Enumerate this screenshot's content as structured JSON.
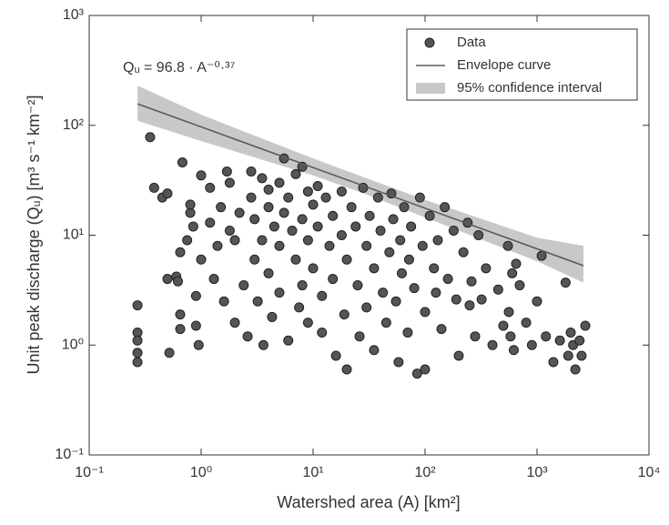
{
  "chart_data": {
    "type": "scatter",
    "xlabel": "Watershed area (A) [km²]",
    "ylabel": "Unit peak discharge (Qᵤ) [m³ s⁻¹ km⁻²]",
    "annotation": "Qᵤ = 96.8 · A⁻⁰·³⁷",
    "xscale": "log",
    "yscale": "log",
    "xlim": [
      0.1,
      10000
    ],
    "ylim": [
      0.1,
      1000
    ],
    "xticks": [
      {
        "value": 0.1,
        "label": "10⁻¹"
      },
      {
        "value": 1,
        "label": "10⁰"
      },
      {
        "value": 10,
        "label": "10¹"
      },
      {
        "value": 100,
        "label": "10²"
      },
      {
        "value": 1000,
        "label": "10³"
      },
      {
        "value": 10000,
        "label": "10⁴"
      }
    ],
    "yticks": [
      {
        "value": 0.1,
        "label": "10⁻¹"
      },
      {
        "value": 1,
        "label": "10⁰"
      },
      {
        "value": 10,
        "label": "10¹"
      },
      {
        "value": 100,
        "label": "10²"
      },
      {
        "value": 1000,
        "label": "10³"
      }
    ],
    "legend": "upper right",
    "series": [
      {
        "name": "Data",
        "color": "#555555",
        "mark": "marker",
        "x": [
          0.27,
          0.27,
          0.27,
          0.27,
          0.27,
          0.35,
          0.38,
          0.45,
          0.5,
          0.5,
          0.52,
          0.6,
          0.62,
          0.65,
          0.65,
          0.65,
          0.68,
          0.75,
          0.8,
          0.8,
          0.85,
          0.9,
          0.9,
          0.95,
          1,
          1,
          1.2,
          1.2,
          1.3,
          1.4,
          1.5,
          1.6,
          1.7,
          1.8,
          1.8,
          2,
          2,
          2.2,
          2.4,
          2.6,
          2.8,
          2.8,
          3,
          3,
          3.2,
          3.5,
          3.5,
          3.6,
          4,
          4,
          4,
          4.3,
          4.5,
          5,
          5,
          5,
          5.5,
          5.5,
          6,
          6,
          6.5,
          7,
          7,
          7.5,
          8,
          8,
          8,
          9,
          9,
          9,
          10,
          10,
          11,
          11,
          12,
          12,
          13,
          14,
          15,
          15,
          16,
          18,
          18,
          19,
          20,
          20,
          22,
          24,
          25,
          26,
          28,
          30,
          30,
          32,
          35,
          35,
          38,
          40,
          42,
          45,
          48,
          50,
          52,
          55,
          58,
          60,
          62,
          65,
          70,
          72,
          75,
          80,
          85,
          90,
          95,
          100,
          100,
          110,
          120,
          125,
          130,
          140,
          150,
          160,
          180,
          190,
          200,
          220,
          240,
          250,
          260,
          280,
          300,
          320,
          350,
          400,
          450,
          500,
          550,
          560,
          580,
          600,
          620,
          650,
          700,
          800,
          900,
          1000,
          1100,
          1200,
          1400,
          1600,
          1800,
          1900,
          2000,
          2100,
          2200,
          2400,
          2500,
          2700
        ],
        "values": [
          2.3,
          1.3,
          1.1,
          0.85,
          0.7,
          78,
          27,
          22,
          24,
          4,
          0.85,
          4.2,
          3.8,
          7,
          1.9,
          1.4,
          46,
          9,
          16,
          19,
          12,
          1.5,
          2.8,
          1,
          35,
          6,
          27,
          13,
          4,
          8,
          18,
          2.5,
          38,
          30,
          11,
          9,
          1.6,
          16,
          3.5,
          1.2,
          38,
          22,
          14,
          6,
          2.5,
          33,
          9,
          1,
          26,
          18,
          4.5,
          1.8,
          12,
          30,
          8,
          3,
          50,
          16,
          22,
          1.1,
          11,
          36,
          6,
          2.2,
          42,
          14,
          3.5,
          25,
          9,
          1.6,
          19,
          5,
          28,
          12,
          2.8,
          1.3,
          22,
          8,
          15,
          4,
          0.8,
          25,
          10,
          1.9,
          6,
          0.6,
          18,
          12,
          3.5,
          1.2,
          27,
          8,
          2.2,
          15,
          5,
          0.9,
          22,
          11,
          3,
          1.6,
          7,
          24,
          14,
          2.5,
          0.7,
          9,
          4.5,
          18,
          1.3,
          6,
          12,
          3.3,
          0.55,
          22,
          8,
          2,
          0.6,
          15,
          5,
          3,
          9,
          1.4,
          18,
          4,
          11,
          2.6,
          0.8,
          7,
          13,
          2.3,
          3.8,
          1.2,
          10,
          2.6,
          5,
          1,
          3.2,
          1.5,
          8,
          2,
          1.2,
          4.5,
          0.9,
          5.5,
          3.5,
          1.6,
          1,
          2.5,
          6.5,
          1.2,
          0.7,
          1.1,
          3.7,
          0.8,
          1.3,
          1,
          0.6,
          1.1,
          0.8,
          1.5
        ]
      },
      {
        "name": "Envelope curve",
        "color": "#5a5a5a",
        "mark": "line",
        "x": [
          0.27,
          2600
        ],
        "values": [
          157,
          5.28
        ]
      },
      {
        "name": "95% confidence interval",
        "color": "#c8c8c8",
        "mark": "band",
        "x": [
          0.27,
          1,
          10,
          30,
          100,
          1000,
          2600
        ],
        "upper": [
          230,
          125,
          50,
          33,
          21,
          9.5,
          8
        ],
        "lower": [
          110,
          72,
          35,
          23.5,
          14.5,
          5.8,
          3.7
        ]
      }
    ]
  }
}
